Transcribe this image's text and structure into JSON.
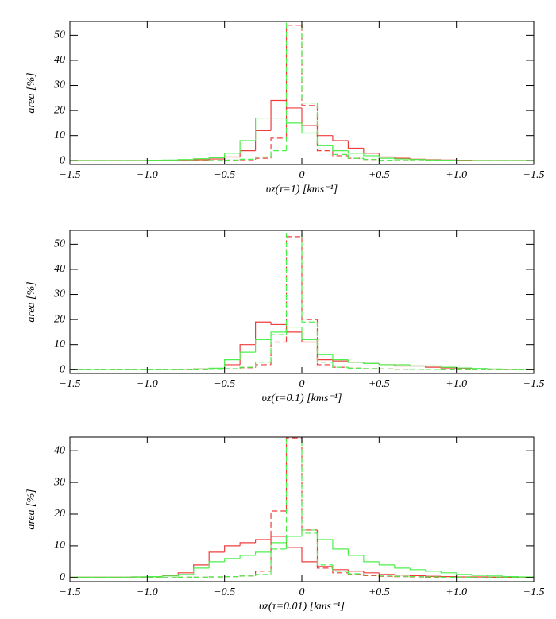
{
  "chart_data": [
    {
      "type": "histogram",
      "xlabel": "υz(τ=1)  [kms⁻¹]",
      "ylabel": "area [%]",
      "bins": [
        -1.5,
        -1.4,
        -1.3,
        -1.2,
        -1.1,
        -1.0,
        -0.9,
        -0.8,
        -0.7,
        -0.6,
        -0.5,
        -0.4,
        -0.3,
        -0.2,
        -0.1,
        0,
        0.1,
        0.2,
        0.3,
        0.4,
        0.5,
        0.6,
        0.7,
        0.8,
        0.9,
        1.0,
        1.1,
        1.2,
        1.3,
        1.4,
        1.5
      ],
      "xlim": [
        -1.5,
        1.5
      ],
      "xticks": [
        {
          "value": -1.5,
          "label": "−1.5"
        },
        {
          "value": -1.0,
          "label": "−1.0"
        },
        {
          "value": -0.5,
          "label": "−0.5"
        },
        0,
        {
          "value": 0.5,
          "label": "+0.5"
        },
        {
          "value": 1.0,
          "label": "+1.0"
        },
        {
          "value": 1.5,
          "label": "+1.5"
        }
      ],
      "ylim": [
        -1.5,
        55.5
      ],
      "yticks": [
        0,
        10,
        20,
        30,
        40,
        50
      ],
      "series": [
        {
          "color": "#f03c3c",
          "linestyle": "solid",
          "values": [
            0.1,
            0.1,
            0.1,
            0.1,
            0.1,
            0.1,
            0.2,
            0.3,
            0.4,
            0.7,
            1.5,
            4,
            12,
            24,
            21,
            14,
            10,
            8,
            5,
            3,
            1.5,
            1,
            0.6,
            0.4,
            0.3,
            0.2,
            0.1,
            0.1,
            0.1,
            0.1
          ]
        },
        {
          "color": "#4cf04c",
          "linestyle": "solid",
          "values": [
            0.1,
            0.1,
            0.1,
            0.1,
            0.1,
            0.2,
            0.3,
            0.5,
            0.8,
            1.2,
            3,
            8,
            17,
            17,
            15,
            11,
            6,
            4,
            3,
            2,
            1,
            0.7,
            0.5,
            0.3,
            0.2,
            0.1,
            0.1,
            0.1,
            0.1,
            0.1
          ]
        },
        {
          "color": "#f03c3c",
          "linestyle": "dashed",
          "values": [
            0,
            0,
            0,
            0,
            0,
            0,
            0,
            0,
            0,
            0.1,
            0.2,
            0.4,
            1,
            9,
            54,
            22,
            4,
            2,
            1,
            0.5,
            0.2,
            0.1,
            0,
            0,
            0,
            0,
            0,
            0,
            0,
            0
          ]
        },
        {
          "color": "#4cf04c",
          "linestyle": "dashed",
          "values": [
            0,
            0,
            0,
            0,
            0,
            0,
            0,
            0,
            0,
            0.1,
            0.3,
            0.6,
            1.5,
            4,
            58,
            23,
            6,
            2.5,
            1,
            0.5,
            0.2,
            0.1,
            0,
            0,
            0,
            0,
            0,
            0,
            0,
            0
          ]
        }
      ]
    },
    {
      "type": "histogram",
      "xlabel": "υz(τ=0.1)  [kms⁻¹]",
      "ylabel": "area [%]",
      "bins": [
        -1.5,
        -1.4,
        -1.3,
        -1.2,
        -1.1,
        -1.0,
        -0.9,
        -0.8,
        -0.7,
        -0.6,
        -0.5,
        -0.4,
        -0.3,
        -0.2,
        -0.1,
        0,
        0.1,
        0.2,
        0.3,
        0.4,
        0.5,
        0.6,
        0.7,
        0.8,
        0.9,
        1.0,
        1.1,
        1.2,
        1.3,
        1.4,
        1.5
      ],
      "xlim": [
        -1.5,
        1.5
      ],
      "xticks": [
        {
          "value": -1.5,
          "label": "−1.5"
        },
        {
          "value": -1.0,
          "label": "−1.0"
        },
        {
          "value": -0.5,
          "label": "−0.5"
        },
        0,
        {
          "value": 0.5,
          "label": "+0.5"
        },
        {
          "value": 1.0,
          "label": "+1.0"
        },
        {
          "value": 1.5,
          "label": "+1.5"
        }
      ],
      "ylim": [
        -1.5,
        55.5
      ],
      "yticks": [
        0,
        10,
        20,
        30,
        40,
        50
      ],
      "series": [
        {
          "color": "#f03c3c",
          "linestyle": "solid",
          "values": [
            0.1,
            0.1,
            0.1,
            0.1,
            0.1,
            0.1,
            0.1,
            0.2,
            0.3,
            0.5,
            2,
            10,
            19,
            18,
            15,
            11,
            4,
            3.5,
            3,
            2.5,
            2,
            1.5,
            1.5,
            1,
            0.7,
            0.5,
            0.3,
            0.2,
            0.1,
            0.1
          ]
        },
        {
          "color": "#4cf04c",
          "linestyle": "solid",
          "values": [
            0.1,
            0.1,
            0.1,
            0.1,
            0.1,
            0.1,
            0.1,
            0.2,
            0.3,
            0.6,
            4,
            7,
            12,
            15,
            17,
            12,
            6,
            4,
            3,
            2.5,
            2,
            2,
            1.5,
            1.5,
            1,
            0.7,
            0.5,
            0.3,
            0.2,
            0.1
          ]
        },
        {
          "color": "#f03c3c",
          "linestyle": "dashed",
          "values": [
            0,
            0,
            0,
            0,
            0,
            0,
            0,
            0,
            0,
            0.1,
            0.3,
            0.8,
            2,
            11,
            53,
            20,
            2,
            1,
            0.6,
            0.4,
            0.3,
            0.2,
            0.1,
            0.1,
            0,
            0,
            0,
            0,
            0,
            0
          ]
        },
        {
          "color": "#4cf04c",
          "linestyle": "dashed",
          "values": [
            0,
            0,
            0,
            0,
            0,
            0,
            0,
            0,
            0,
            0.1,
            0.4,
            1,
            3,
            14,
            58,
            19,
            3,
            1,
            0.6,
            0.4,
            0.3,
            0.2,
            0.1,
            0.1,
            0,
            0,
            0,
            0,
            0,
            0
          ]
        }
      ]
    },
    {
      "type": "histogram",
      "xlabel": "υz(τ=0.01)  [kms⁻¹]",
      "ylabel": "area [%]",
      "bins": [
        -1.5,
        -1.4,
        -1.3,
        -1.2,
        -1.1,
        -1.0,
        -0.9,
        -0.8,
        -0.7,
        -0.6,
        -0.5,
        -0.4,
        -0.3,
        -0.2,
        -0.1,
        0,
        0.1,
        0.2,
        0.3,
        0.4,
        0.5,
        0.6,
        0.7,
        0.8,
        0.9,
        1.0,
        1.1,
        1.2,
        1.3,
        1.4,
        1.5
      ],
      "xlim": [
        -1.5,
        1.5
      ],
      "xticks": [
        {
          "value": -1.5,
          "label": "−1.5"
        },
        {
          "value": -1.0,
          "label": "−1.0"
        },
        {
          "value": -0.5,
          "label": "−0.5"
        },
        0,
        {
          "value": 0.5,
          "label": "+0.5"
        },
        {
          "value": 1.0,
          "label": "+1.0"
        },
        {
          "value": 1.5,
          "label": "+1.5"
        }
      ],
      "ylim": [
        -1.3,
        44.3
      ],
      "yticks": [
        0,
        10,
        20,
        30,
        40
      ],
      "series": [
        {
          "color": "#f03c3c",
          "linestyle": "solid",
          "values": [
            0.1,
            0.1,
            0.1,
            0.1,
            0.2,
            0.3,
            0.6,
            1.5,
            4,
            8,
            10,
            11,
            12,
            13,
            9.5,
            5,
            3.5,
            2.5,
            2,
            1.5,
            1,
            0.8,
            0.6,
            0.4,
            0.3,
            0.2,
            0.2,
            0.1,
            0.1,
            0.1
          ]
        },
        {
          "color": "#4cf04c",
          "linestyle": "solid",
          "values": [
            0.1,
            0.1,
            0.1,
            0.1,
            0.2,
            0.3,
            0.5,
            1,
            3,
            5,
            6,
            7,
            8,
            11,
            13,
            15,
            12,
            9,
            7,
            5,
            4,
            3,
            2.5,
            2,
            1.5,
            1,
            0.7,
            0.5,
            0.3,
            0.2
          ]
        },
        {
          "color": "#f03c3c",
          "linestyle": "dashed",
          "values": [
            0,
            0,
            0,
            0,
            0,
            0,
            0,
            0.1,
            0.1,
            0.2,
            0.3,
            0.5,
            2,
            21,
            44,
            15,
            3,
            1.5,
            1,
            0.6,
            0.4,
            0.3,
            0.2,
            0.1,
            0.1,
            0,
            0,
            0,
            0,
            0
          ]
        },
        {
          "color": "#4cf04c",
          "linestyle": "dashed",
          "values": [
            0,
            0,
            0,
            0,
            0,
            0,
            0,
            0.1,
            0.1,
            0.2,
            0.3,
            0.5,
            1,
            9,
            46,
            14,
            4,
            2,
            1.2,
            0.8,
            0.5,
            0.4,
            0.3,
            0.2,
            0.1,
            0.1,
            0,
            0,
            0,
            0
          ]
        }
      ]
    }
  ]
}
